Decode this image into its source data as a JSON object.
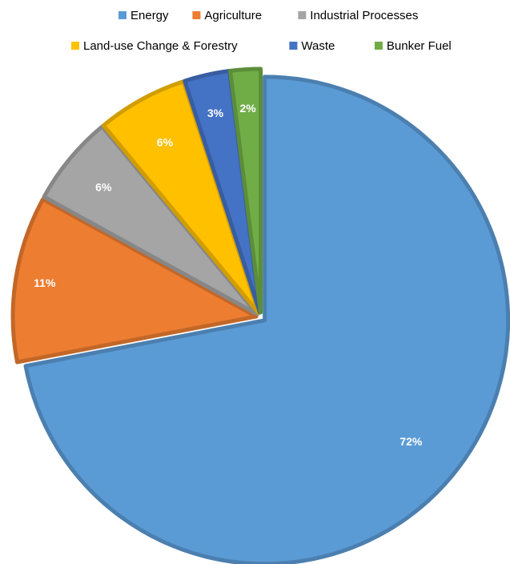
{
  "chart_data": {
    "type": "pie",
    "title": "",
    "legend_position": "top",
    "start_angle_deg": 0,
    "direction": "clockwise",
    "slices": [
      {
        "label": "Energy",
        "value": 72,
        "display": "72%",
        "color": "#5B9BD5"
      },
      {
        "label": "Agriculture",
        "value": 11,
        "display": "11%",
        "color": "#ED7D31"
      },
      {
        "label": "Industrial Processes",
        "value": 6,
        "display": "6%",
        "color": "#A5A5A5"
      },
      {
        "label": "Land-use Change & Forestry",
        "value": 6,
        "display": "6%",
        "color": "#FFC000"
      },
      {
        "label": "Waste",
        "value": 3,
        "display": "3%",
        "color": "#4472C4"
      },
      {
        "label": "Bunker Fuel",
        "value": 2,
        "display": "2%",
        "color": "#70AD47"
      }
    ]
  }
}
